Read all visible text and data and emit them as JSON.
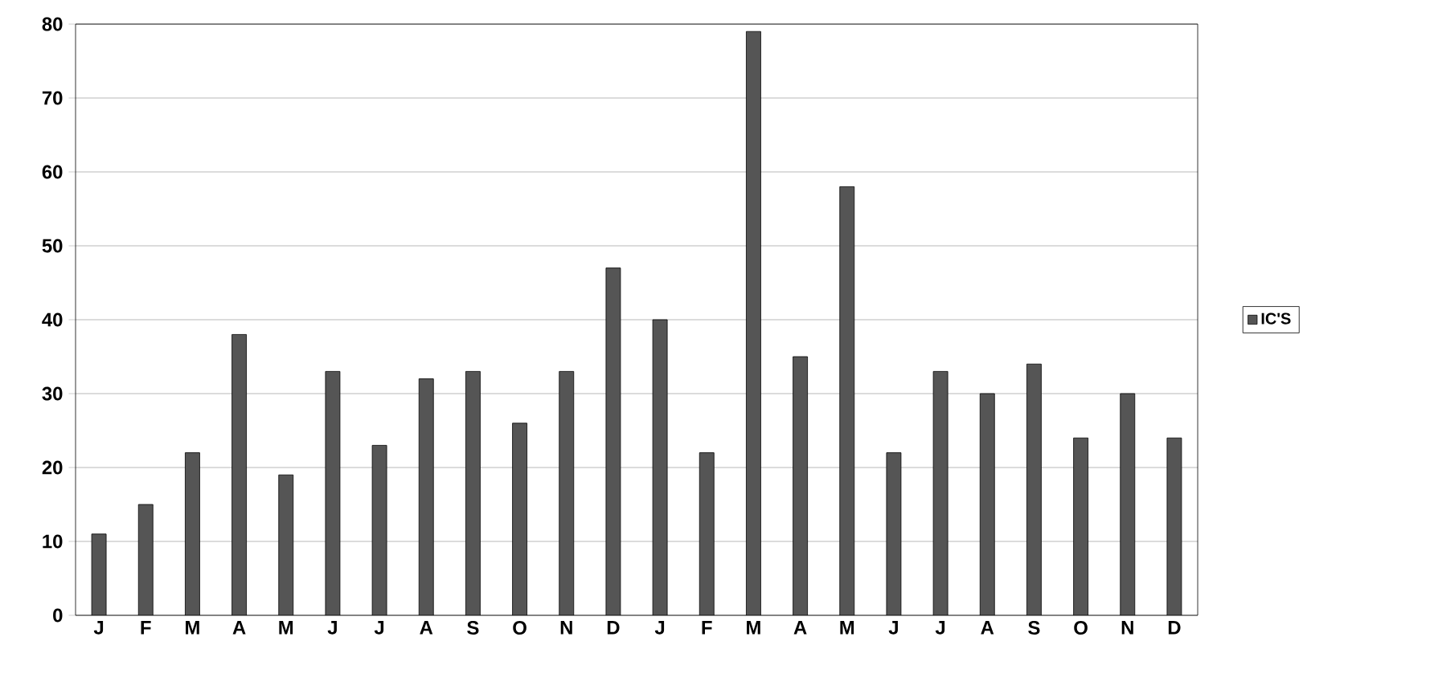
{
  "chart_data": {
    "type": "bar",
    "categories": [
      "J",
      "F",
      "M",
      "A",
      "M",
      "J",
      "J",
      "A",
      "S",
      "O",
      "N",
      "D",
      "J",
      "F",
      "M",
      "A",
      "M",
      "J",
      "J",
      "A",
      "S",
      "O",
      "N",
      "D"
    ],
    "series": [
      {
        "name": "IC'S",
        "color": "#555555",
        "values": [
          11,
          15,
          22,
          38,
          19,
          33,
          23,
          32,
          33,
          26,
          33,
          47,
          40,
          22,
          79,
          35,
          58,
          22,
          33,
          30,
          34,
          24,
          30,
          24
        ]
      }
    ],
    "ylim": [
      0,
      80
    ],
    "yticks": [
      0,
      10,
      20,
      30,
      40,
      50,
      60,
      70,
      80
    ],
    "grid": "y",
    "legend": "right"
  }
}
